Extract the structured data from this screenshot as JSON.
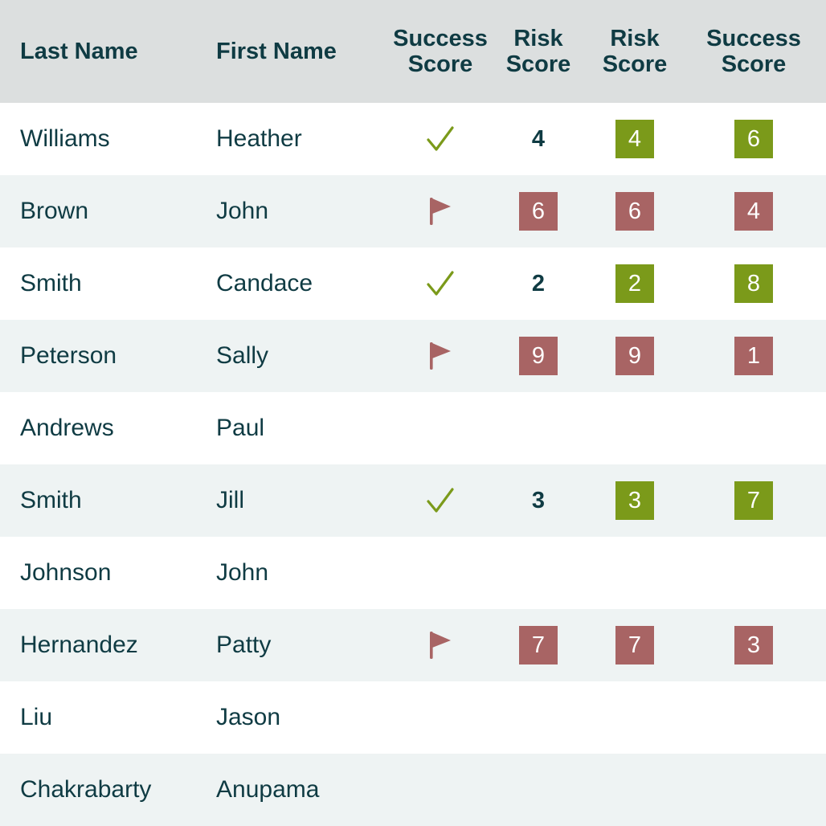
{
  "colors": {
    "good": "#7b9a1a",
    "bad": "#a86464",
    "header_bg": "#dcdfdf",
    "alt_row_bg": "#eef3f3",
    "text": "#0f3b43"
  },
  "header": {
    "last_name": "Last Name",
    "first_name": "First Name",
    "col3_line1": "Success",
    "col3_line2": "Score",
    "col4_line1": "Risk",
    "col4_line2": "Score",
    "col5_line1": "Risk",
    "col5_line2": "Score",
    "col6_line1": "Success",
    "col6_line2": "Score"
  },
  "rows": [
    {
      "last": "Williams",
      "first": "Heather",
      "indicator": "check-icon",
      "risk_plain": "4",
      "risk_badge": "4",
      "risk_status": "good",
      "success_badge": "6",
      "success_status": "good"
    },
    {
      "last": "Brown",
      "first": "John",
      "indicator": "flag-icon",
      "risk_plain": "6",
      "risk_badge": "6",
      "risk_status": "bad",
      "success_badge": "4",
      "success_status": "bad",
      "plain_style": "badge"
    },
    {
      "last": "Smith",
      "first": "Candace",
      "indicator": "check-icon",
      "risk_plain": "2",
      "risk_badge": "2",
      "risk_status": "good",
      "success_badge": "8",
      "success_status": "good"
    },
    {
      "last": "Peterson",
      "first": "Sally",
      "indicator": "flag-icon",
      "risk_plain": "9",
      "risk_badge": "9",
      "risk_status": "bad",
      "success_badge": "1",
      "success_status": "bad",
      "plain_style": "badge"
    },
    {
      "last": "Andrews",
      "first": "Paul"
    },
    {
      "last": "Smith",
      "first": "Jill",
      "indicator": "check-icon",
      "risk_plain": "3",
      "risk_badge": "3",
      "risk_status": "good",
      "success_badge": "7",
      "success_status": "good"
    },
    {
      "last": "Johnson",
      "first": "John"
    },
    {
      "last": "Hernandez",
      "first": "Patty",
      "indicator": "flag-icon",
      "risk_plain": "7",
      "risk_badge": "7",
      "risk_status": "bad",
      "success_badge": "3",
      "success_status": "bad",
      "plain_style": "badge"
    },
    {
      "last": "Liu",
      "first": "Jason"
    },
    {
      "last": "Chakrabarty",
      "first": "Anupama"
    }
  ]
}
